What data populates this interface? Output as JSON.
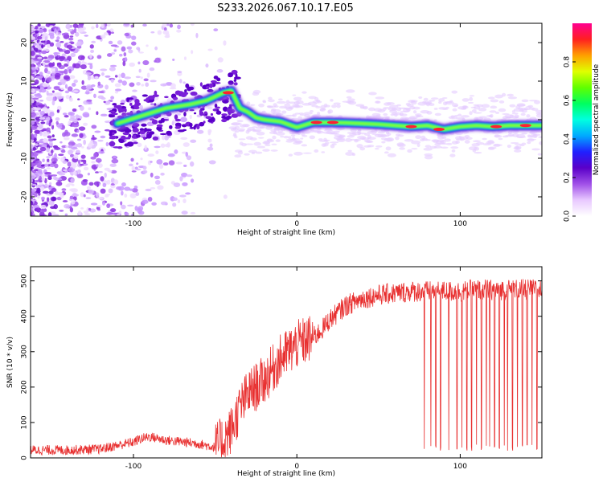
{
  "title": "S233.2026.067.10.17.E05",
  "chart_data": [
    {
      "type": "heatmap",
      "xlabel": "Height of straight line (km)",
      "ylabel": "Frequency (Hz)",
      "xlim": [
        -163,
        150
      ],
      "ylim": [
        -25,
        25
      ],
      "x_ticks": [
        -100,
        0,
        100
      ],
      "y_ticks": [
        -20,
        -10,
        0,
        10,
        20
      ],
      "grid": false,
      "colorbar": {
        "label": "Normalized spectral amplitude",
        "range": [
          0,
          1
        ],
        "ticks": [
          0.0,
          0.2,
          0.4,
          0.6,
          0.8
        ],
        "colors": [
          "#ffffff",
          "#e8c8ff",
          "#a050e8",
          "#5a00c8",
          "#2020ff",
          "#00aaff",
          "#00ffe0",
          "#00ff60",
          "#60ff00",
          "#e0ff00",
          "#ffa000",
          "#ff2020",
          "#ff0090"
        ]
      },
      "ridge": {
        "x": [
          -110,
          -95,
          -80,
          -65,
          -55,
          -45,
          -40,
          -35,
          -30,
          -25,
          -20,
          -10,
          0,
          10,
          20,
          30,
          40,
          50,
          60,
          70,
          80,
          90,
          100,
          110,
          120,
          130,
          140,
          150
        ],
        "y": [
          -1,
          1,
          3,
          4,
          5,
          7,
          7.5,
          3,
          2,
          0.5,
          0,
          -0.5,
          -2,
          -0.7,
          -0.7,
          -0.8,
          -1,
          -1.2,
          -1.5,
          -1.8,
          -1.5,
          -2.5,
          -1.8,
          -1.5,
          -1.8,
          -1.5,
          -1.5,
          -1.5
        ]
      }
    },
    {
      "type": "line",
      "xlabel": "Height of straight line (km)",
      "ylabel": "SNR (10 * v/v)",
      "xlim": [
        -163,
        150
      ],
      "ylim": [
        0,
        540
      ],
      "x_ticks": [
        -100,
        0,
        100
      ],
      "y_ticks": [
        0,
        100,
        200,
        300,
        400,
        500
      ],
      "color": "#e83030",
      "grid": false,
      "series": [
        {
          "x": [
            -163,
            -140,
            -120,
            -110,
            -100,
            -95,
            -90,
            -85,
            -80,
            -70,
            -60,
            -50,
            -45,
            -40,
            -35,
            -30,
            -25,
            -20,
            -15,
            -10,
            -5,
            0,
            5,
            10,
            15,
            20,
            25,
            30,
            35,
            40,
            50,
            60,
            70,
            80,
            90,
            100,
            110,
            120,
            130,
            140,
            150
          ],
          "y": [
            22,
            22,
            25,
            35,
            45,
            55,
            60,
            55,
            50,
            45,
            40,
            30,
            50,
            80,
            140,
            180,
            200,
            220,
            250,
            280,
            300,
            320,
            330,
            340,
            360,
            390,
            410,
            430,
            440,
            450,
            460,
            465,
            470,
            470,
            470,
            470,
            475,
            475,
            475,
            475,
            475
          ]
        }
      ],
      "dropouts_x": [
        78,
        82,
        85,
        88,
        93,
        98,
        101,
        104,
        107,
        110,
        113,
        116,
        118,
        121,
        124,
        127,
        129,
        132,
        135,
        138,
        141,
        144,
        147
      ]
    }
  ]
}
